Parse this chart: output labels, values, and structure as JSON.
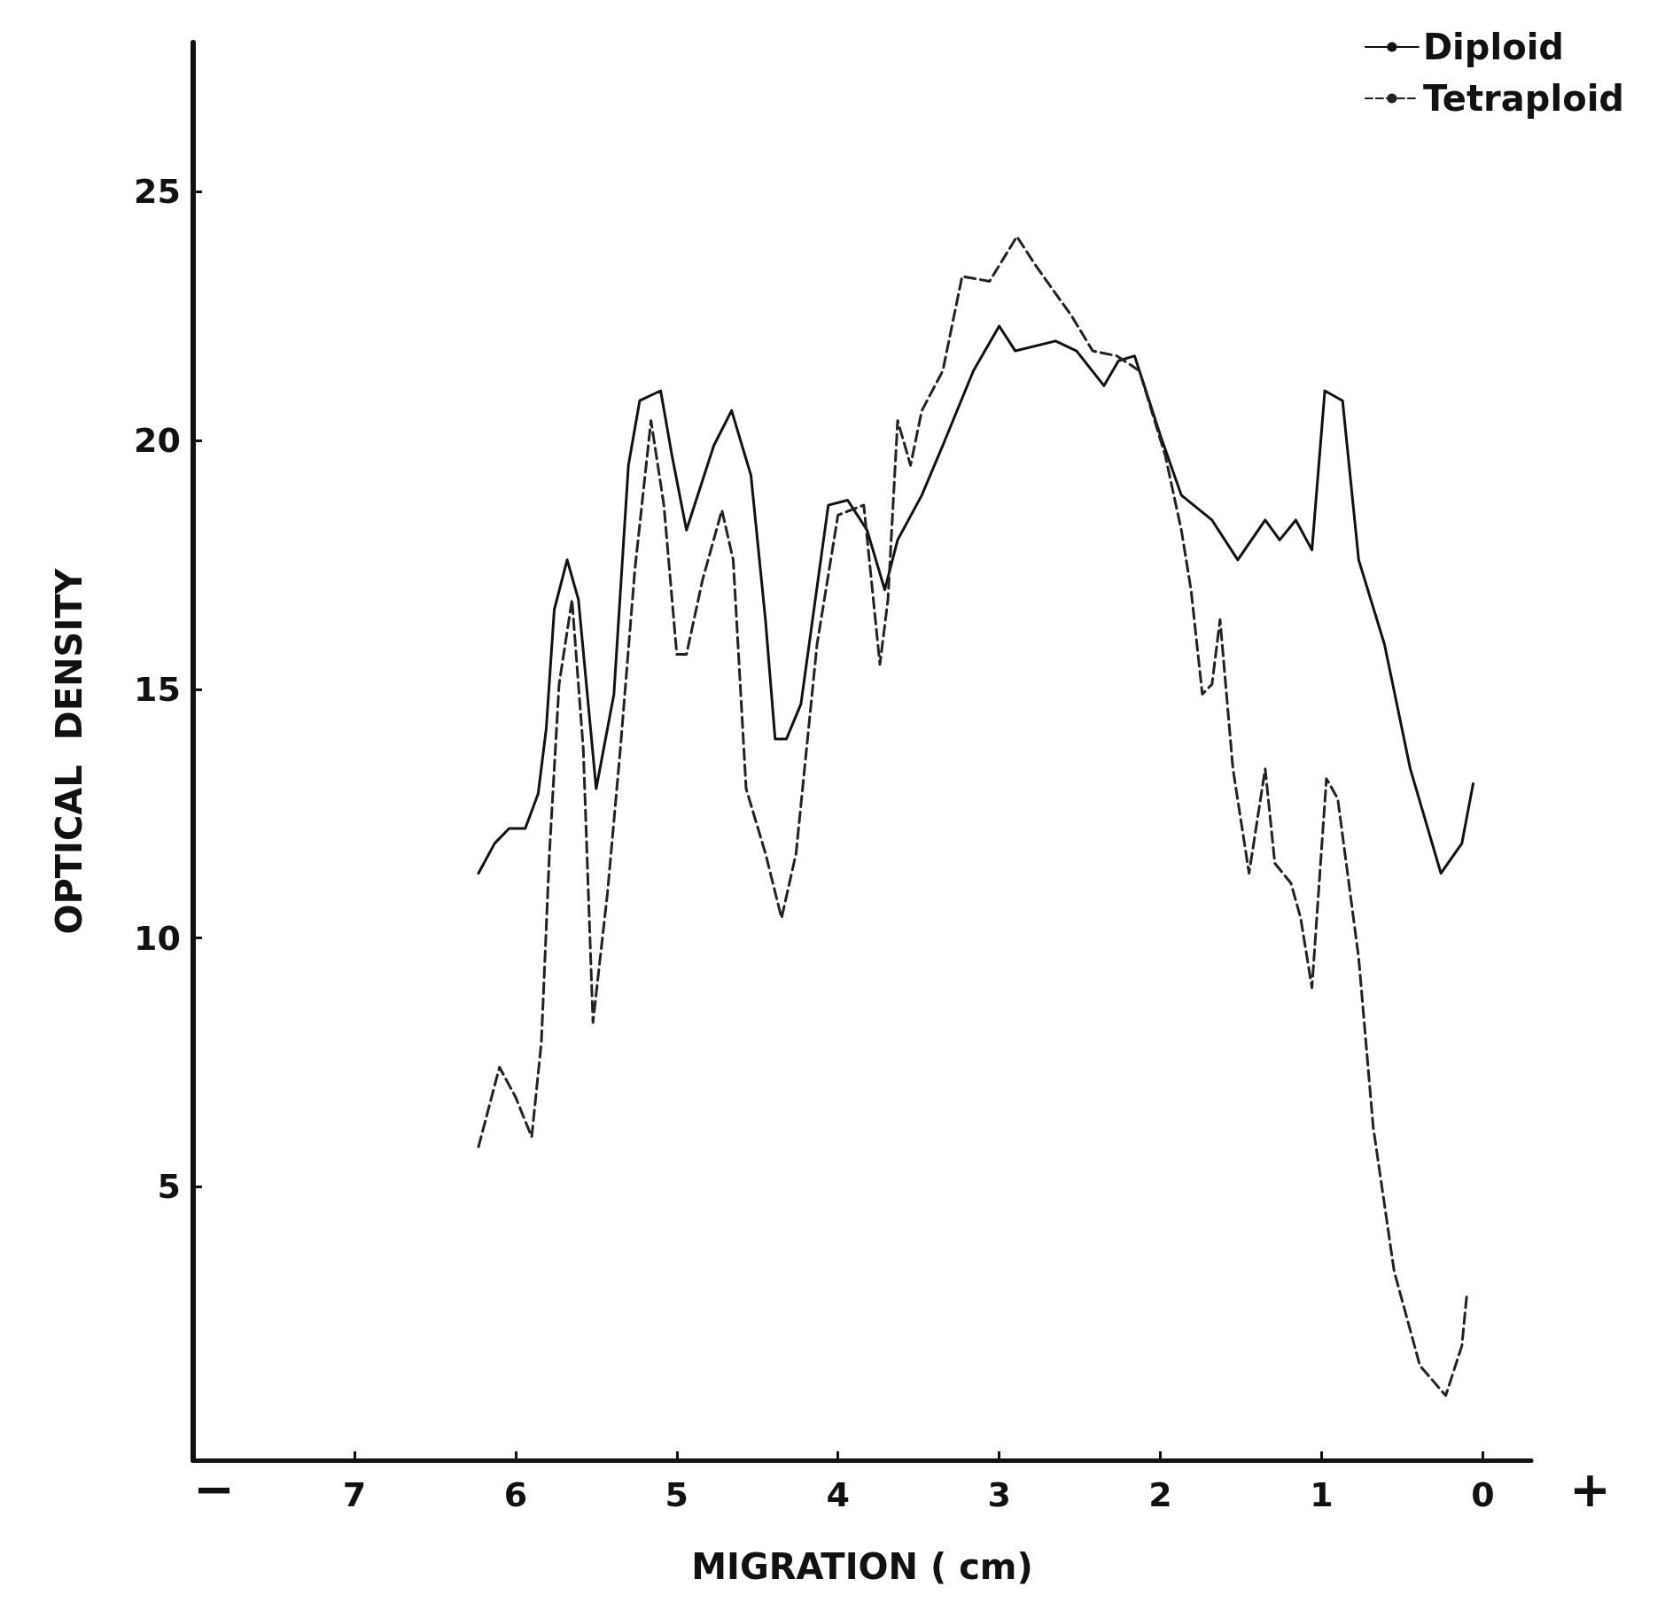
{
  "chart_data": {
    "type": "line",
    "xlabel": "MIGRATION ( cm)",
    "ylabel": "OPTICAL  DENSITY",
    "xlim": [
      8,
      -0.3
    ],
    "xticks": [
      7,
      6,
      5,
      4,
      3,
      2,
      1,
      0
    ],
    "ylim": [
      -0.5,
      28
    ],
    "yticks": [
      5,
      10,
      15,
      20,
      25
    ],
    "grid": false,
    "legend": "top right",
    "marker": "none",
    "annotations": [
      "−",
      "+"
    ],
    "series": [
      {
        "name": "Diploid",
        "color": "#111111",
        "line_style": "solid",
        "x": [
          6.23,
          6.13,
          6.04,
          5.94,
          5.86,
          5.81,
          5.76,
          5.68,
          5.61,
          5.5,
          5.39,
          5.3,
          5.23,
          5.1,
          5.03,
          4.94,
          4.77,
          4.66,
          4.54,
          4.45,
          4.39,
          4.32,
          4.23,
          4.06,
          3.94,
          3.82,
          3.71,
          3.63,
          3.48,
          3.35,
          3.16,
          3.0,
          2.9,
          2.65,
          2.52,
          2.35,
          2.26,
          2.16,
          2.0,
          1.87,
          1.68,
          1.52,
          1.35,
          1.26,
          1.16,
          1.06,
          0.98,
          0.87,
          0.77,
          0.61,
          0.45,
          0.26,
          0.13,
          0.06
        ],
        "values": [
          11.3,
          11.9,
          12.2,
          12.2,
          12.9,
          14.2,
          16.6,
          17.6,
          16.8,
          13.0,
          14.9,
          19.5,
          20.8,
          21.0,
          19.7,
          18.2,
          19.9,
          20.6,
          19.3,
          16.4,
          14.0,
          14.0,
          14.7,
          18.7,
          18.8,
          18.2,
          17.0,
          18.0,
          18.9,
          19.9,
          21.4,
          22.3,
          21.8,
          22.0,
          21.8,
          21.1,
          21.6,
          21.7,
          20.1,
          18.9,
          18.4,
          17.6,
          18.4,
          18.0,
          18.4,
          17.8,
          21.0,
          20.8,
          17.6,
          15.9,
          13.4,
          11.3,
          11.9,
          13.1
        ]
      },
      {
        "name": "Tetraploid",
        "color": "#222222",
        "line_style": "dashed",
        "x": [
          6.23,
          6.1,
          6.0,
          5.9,
          5.84,
          5.79,
          5.73,
          5.65,
          5.58,
          5.52,
          5.43,
          5.35,
          5.26,
          5.16,
          5.08,
          5.0,
          4.94,
          4.84,
          4.72,
          4.65,
          4.57,
          4.45,
          4.35,
          4.26,
          4.13,
          4.0,
          3.84,
          3.74,
          3.69,
          3.63,
          3.55,
          3.48,
          3.35,
          3.23,
          3.06,
          2.89,
          2.77,
          2.55,
          2.42,
          2.27,
          2.13,
          1.97,
          1.87,
          1.81,
          1.74,
          1.68,
          1.63,
          1.55,
          1.45,
          1.35,
          1.29,
          1.19,
          1.13,
          1.06,
          0.97,
          0.9,
          0.77,
          0.68,
          0.55,
          0.39,
          0.23,
          0.13,
          0.1
        ],
        "values": [
          5.8,
          7.4,
          6.8,
          6.0,
          7.9,
          11.7,
          15.1,
          16.8,
          13.8,
          8.3,
          10.9,
          13.8,
          17.4,
          20.4,
          18.7,
          15.7,
          15.7,
          17.2,
          18.6,
          17.6,
          13.0,
          11.7,
          10.4,
          11.7,
          15.9,
          18.5,
          18.7,
          15.5,
          16.8,
          20.4,
          19.5,
          20.6,
          21.4,
          23.3,
          23.2,
          24.1,
          23.5,
          22.5,
          21.8,
          21.7,
          21.4,
          19.7,
          18.2,
          17.0,
          14.9,
          15.1,
          16.4,
          13.4,
          11.3,
          13.4,
          11.5,
          11.1,
          10.4,
          9.0,
          13.2,
          12.8,
          9.6,
          6.2,
          3.3,
          1.4,
          0.8,
          1.8,
          2.8
        ]
      }
    ]
  }
}
